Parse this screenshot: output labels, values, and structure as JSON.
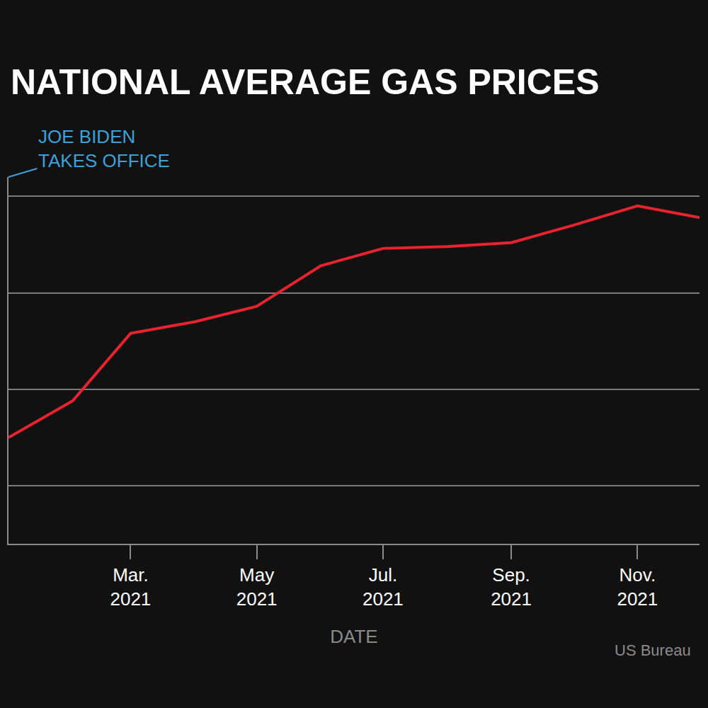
{
  "chart_data": {
    "type": "line",
    "title": "NATIONAL AVERAGE GAS PRICES",
    "x_label": "DATE",
    "annotations": [
      {
        "text": "JOE BIDEN\nTAKES OFFICE"
      }
    ],
    "source": "US Bureau",
    "x": [
      "2021-01",
      "2021-02",
      "2021-03",
      "2021-04",
      "2021-05",
      "2021-06",
      "2021-07",
      "2021-08",
      "2021-09",
      "2021-10",
      "2021-11",
      "2021-12"
    ],
    "values": [
      2.25,
      2.44,
      2.79,
      2.85,
      2.93,
      3.14,
      3.23,
      3.24,
      3.26,
      3.35,
      3.45,
      3.39
    ],
    "color": "#e8232f",
    "xlim": [
      "2021-01",
      "2021-12"
    ],
    "ylim": [
      1.7,
      3.6
    ],
    "xticks": [
      {
        "value": "2021-03",
        "label": "Mar.\n2021"
      },
      {
        "value": "2021-05",
        "label": "May\n2021"
      },
      {
        "value": "2021-07",
        "label": "Jul.\n2021"
      },
      {
        "value": "2021-09",
        "label": "Sep.\n2021"
      },
      {
        "value": "2021-11",
        "label": "Nov.\n2021"
      }
    ],
    "yticks": [
      2,
      2.5,
      3,
      3.5
    ],
    "grid": true,
    "tick_labels": "x"
  }
}
